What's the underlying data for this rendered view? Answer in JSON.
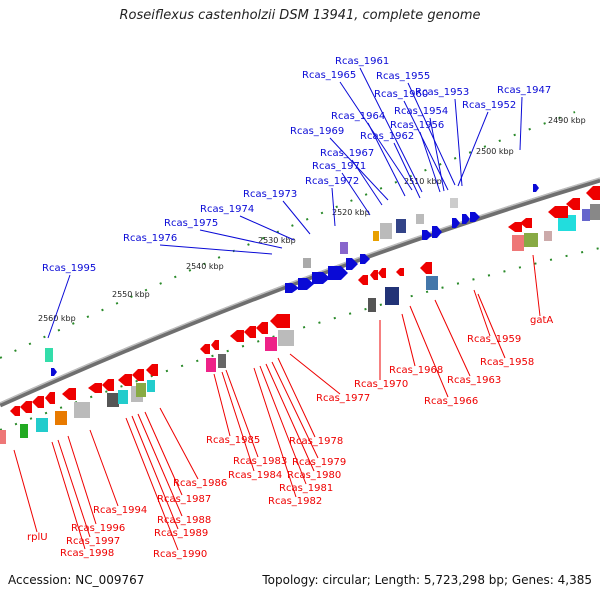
{
  "title": "Roseiflexus castenholzii DSM 13941, complete genome",
  "footer": {
    "accession": "Accession: NC_009767",
    "topology": "Topology: circular; Length: 5,723,298 bp; Genes: 4,385"
  },
  "colors": {
    "forward": "#0a0ad6",
    "reverse": "#ee0000",
    "backbone": "#7a7a7a",
    "ticks": "#2a8a2a"
  },
  "kbp_labels": [
    "2490 kbp",
    "2500 kbp",
    "2510 kbp",
    "2520 kbp",
    "2530 kbp",
    "2540 kbp",
    "2550 kbp",
    "2560 kbp"
  ],
  "top_genes": [
    "Rcas_1961",
    "Rcas_1965",
    "Rcas_1955",
    "Rcas_1960",
    "Rcas_1953",
    "Rcas_1947",
    "Rcas_1954",
    "Rcas_1952",
    "Rcas_1964",
    "Rcas_1956",
    "Rcas_1969",
    "Rcas_1962",
    "Rcas_1967",
    "Rcas_1971",
    "Rcas_1972",
    "Rcas_1973",
    "Rcas_1974",
    "Rcas_1975",
    "Rcas_1976",
    "Rcas_1995"
  ],
  "bottom_genes": [
    "gatA",
    "Rcas_1959",
    "Rcas_1958",
    "Rcas_1968",
    "Rcas_1970",
    "Rcas_1963",
    "Rcas_1966",
    "Rcas_1977",
    "Rcas_1978",
    "Rcas_1985",
    "Rcas_1979",
    "Rcas_1983",
    "Rcas_1980",
    "Rcas_1984",
    "Rcas_1981",
    "Rcas_1986",
    "Rcas_1982",
    "Rcas_1987",
    "Rcas_1994",
    "Rcas_1988",
    "Rcas_1996",
    "Rcas_1989",
    "rplU",
    "Rcas_1997",
    "Rcas_1990",
    "Rcas_1998"
  ]
}
